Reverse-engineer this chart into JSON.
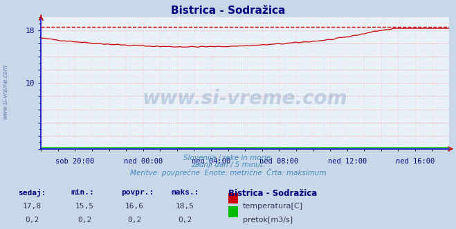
{
  "title": "Bistrica - Sodražica",
  "title_color": "#000080",
  "background_color": "#c8d8e8",
  "plot_bg_color": "#e8f0f8",
  "grid_color_major": "#ff9999",
  "grid_color_minor": "#ffcccc",
  "xlabel_ticks": [
    "sob 20:00",
    "ned 00:00",
    "ned 04:00",
    "ned 08:00",
    "ned 12:00",
    "ned 16:00"
  ],
  "ylim": [
    0,
    20
  ],
  "temp_max_line": 18.5,
  "temp_color": "#cc0000",
  "flow_color": "#00bb00",
  "watermark": "www.si-vreme.com",
  "subtitle1": "Slovenija / reke in morje.",
  "subtitle2": "zadnji dan / 5 minut.",
  "subtitle3": "Meritve: povprečne  Enote: metrične  Črta: maksimum",
  "legend_title": "Bistrica - Sodražica",
  "legend_temp_label": "temperatura[C]",
  "legend_flow_label": "pretok[m3/s]",
  "stat_headers": [
    "sedaj:",
    "min.:",
    "povpr.:",
    "maks.:"
  ],
  "temp_stats": [
    17.8,
    15.5,
    16.6,
    18.5
  ],
  "flow_stats": [
    0.2,
    0.2,
    0.2,
    0.2
  ],
  "axis_label_color": "#000080",
  "stat_color": "#000080"
}
